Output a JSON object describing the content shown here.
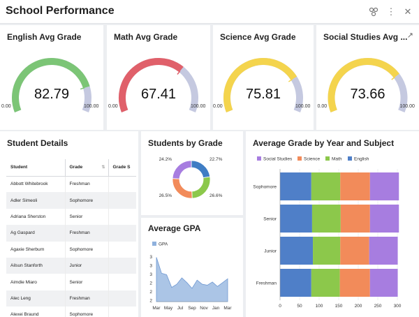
{
  "header": {
    "title": "School Performance",
    "icons": [
      "filter-icon",
      "more-vertical-icon",
      "close-icon"
    ]
  },
  "gauges": [
    {
      "title": "English Avg Grade",
      "value": "82.79",
      "fraction": 0.8279,
      "min": "0.00",
      "max": "100.00",
      "color": "#7cc576"
    },
    {
      "title": "Math Avg Grade",
      "value": "67.41",
      "fraction": 0.6741,
      "min": "0.00",
      "max": "100.00",
      "color": "#e0606a"
    },
    {
      "title": "Science Avg Grade",
      "value": "75.81",
      "fraction": 0.7581,
      "min": "0.00",
      "max": "100.00",
      "color": "#f4d44d"
    },
    {
      "title": "Social Studies Avg ...",
      "value": "73.66",
      "fraction": 0.7366,
      "min": "0.00",
      "max": "100.00",
      "color": "#f4d44d"
    }
  ],
  "gauge_track_color": "#c5c9e0",
  "student_details": {
    "title": "Student Details",
    "columns": [
      "Student",
      "Grade",
      "Grade S"
    ],
    "rows": [
      [
        "Abbott Whitebrook",
        "Freshman"
      ],
      [
        "Adler Simeoli",
        "Sophomore"
      ],
      [
        "Adriana Sherston",
        "Senior"
      ],
      [
        "Ag Gaspard",
        "Freshman"
      ],
      [
        "Agaxie Sherburn",
        "Sophomore"
      ],
      [
        "Ailsun Stanforth",
        "Junior"
      ],
      [
        "Aimdie Miaro",
        "Senior"
      ],
      [
        "Alec Leng",
        "Freshman"
      ],
      [
        "Alexei Braund",
        "Sophomore"
      ]
    ]
  },
  "students_by_grade": {
    "title": "Students by Grade",
    "chart_data": {
      "type": "pie",
      "labels": [
        "22.7%",
        "26.6%",
        "26.5%",
        "24.2%"
      ],
      "values": [
        22.7,
        26.6,
        26.5,
        24.2
      ],
      "colors": [
        "#3f7dc4",
        "#8cc84b",
        "#f28b5a",
        "#a77de0"
      ]
    }
  },
  "average_gpa": {
    "title": "Average GPA",
    "chart_data": {
      "type": "area",
      "series": [
        {
          "name": "GPA",
          "values": [
            3.4,
            2.9,
            2.85,
            2.45,
            2.55,
            2.75,
            2.6,
            2.42,
            2.68,
            2.55,
            2.52,
            2.62,
            2.48,
            2.6,
            2.72
          ]
        }
      ],
      "x_ticks": [
        "Mar",
        "May",
        "Jul",
        "Sep",
        "Nov",
        "Jan",
        "Mar"
      ],
      "y_ticks": [
        "3",
        "3",
        "3",
        "2",
        "2",
        "2"
      ],
      "ylim": [
        2.0,
        3.5
      ],
      "color": "#8fb1dd"
    }
  },
  "grade_by_year": {
    "title": "Average Grade by Year and Subject",
    "chart_data": {
      "type": "bar",
      "orientation": "horizontal",
      "stacked": true,
      "categories": [
        "Sophomore",
        "Senior",
        "Junior",
        "Freshman"
      ],
      "series": [
        {
          "name": "English",
          "color": "#4f7fc8",
          "values": [
            80,
            82,
            84,
            80
          ]
        },
        {
          "name": "Math",
          "color": "#8cc84b",
          "values": [
            74,
            73,
            70,
            73
          ]
        },
        {
          "name": "Science",
          "color": "#f28b5a",
          "values": [
            76,
            75,
            74,
            77
          ]
        },
        {
          "name": "Social Studies",
          "color": "#a77de0",
          "values": [
            74,
            74,
            73,
            71
          ]
        }
      ],
      "legend_order": [
        "Social Studies",
        "Science",
        "Math",
        "English"
      ],
      "x_ticks": [
        "0",
        "50",
        "100",
        "150",
        "200",
        "250",
        "300"
      ],
      "xlim": [
        0,
        300
      ]
    }
  }
}
